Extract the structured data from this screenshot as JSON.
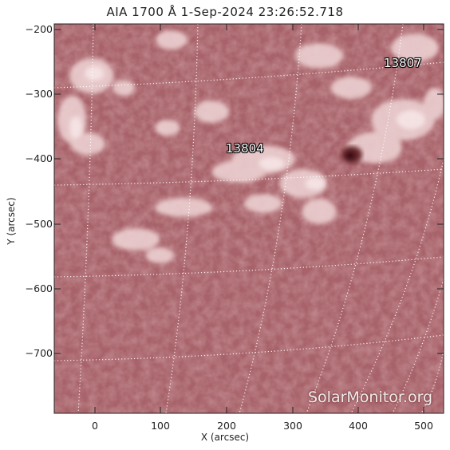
{
  "title": "AIA 1700 Å  1-Sep-2024 23:26:52.718",
  "xlabel": "X (arcsec)",
  "ylabel": "Y (arcsec)",
  "x_ticks": [
    "0",
    "100",
    "200",
    "300",
    "400",
    "500"
  ],
  "y_ticks": [
    "−200",
    "−300",
    "−400",
    "−500",
    "−600",
    "−700"
  ],
  "regions": [
    {
      "id": "13807"
    },
    {
      "id": "13804"
    }
  ],
  "watermark": "SolarMonitor.org",
  "colors": {
    "disk_base": "#a8636a",
    "plage": "#f2dcdd",
    "sunspot": "#4a1418",
    "grid": "#ffffff"
  },
  "x_range": [
    -60,
    540
  ],
  "y_range": [
    -190,
    -790
  ]
}
